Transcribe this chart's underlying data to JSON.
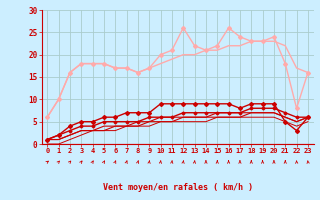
{
  "bg_color": "#cceeff",
  "grid_color": "#aacccc",
  "xlabel": "Vent moyen/en rafales ( km/h )",
  "xlabel_color": "#cc0000",
  "tick_color": "#cc0000",
  "ylim": [
    0,
    30
  ],
  "xlim": [
    -0.5,
    23.5
  ],
  "yticks": [
    0,
    5,
    10,
    15,
    20,
    25,
    30
  ],
  "xticks": [
    0,
    1,
    2,
    3,
    4,
    5,
    6,
    7,
    8,
    9,
    10,
    11,
    12,
    13,
    14,
    15,
    16,
    17,
    18,
    19,
    20,
    21,
    22,
    23
  ],
  "lines": [
    {
      "x": [
        0,
        1,
        2,
        3,
        4,
        5,
        6,
        7,
        8,
        9,
        10,
        11,
        12,
        13,
        14,
        15,
        16,
        17,
        18,
        19,
        20,
        21,
        22,
        23
      ],
      "y": [
        6,
        10,
        16,
        18,
        18,
        18,
        17,
        17,
        16,
        17,
        20,
        21,
        26,
        22,
        21,
        22,
        26,
        24,
        23,
        23,
        24,
        18,
        8,
        16
      ],
      "color": "#ffaaaa",
      "lw": 1.0,
      "marker": "D",
      "ms": 2.0,
      "zorder": 3
    },
    {
      "x": [
        0,
        1,
        2,
        3,
        4,
        5,
        6,
        7,
        8,
        9,
        10,
        11,
        12,
        13,
        14,
        15,
        16,
        17,
        18,
        19,
        20,
        21,
        22,
        23
      ],
      "y": [
        6,
        10,
        16,
        18,
        18,
        18,
        17,
        17,
        16,
        17,
        18,
        19,
        20,
        20,
        21,
        21,
        22,
        22,
        23,
        23,
        23,
        22,
        17,
        16
      ],
      "color": "#ffaaaa",
      "lw": 1.0,
      "marker": null,
      "ms": 0,
      "zorder": 2
    },
    {
      "x": [
        0,
        1,
        2,
        3,
        4,
        5,
        6,
        7,
        8,
        9,
        10,
        11,
        12,
        13,
        14,
        15,
        16,
        17,
        18,
        19,
        20,
        21,
        22,
        23
      ],
      "y": [
        1,
        2,
        4,
        5,
        5,
        6,
        6,
        7,
        7,
        7,
        9,
        9,
        9,
        9,
        9,
        9,
        9,
        8,
        9,
        9,
        9,
        5,
        3,
        6
      ],
      "color": "#cc0000",
      "lw": 1.0,
      "marker": "D",
      "ms": 2.0,
      "zorder": 4
    },
    {
      "x": [
        0,
        1,
        2,
        3,
        4,
        5,
        6,
        7,
        8,
        9,
        10,
        11,
        12,
        13,
        14,
        15,
        16,
        17,
        18,
        19,
        20,
        21,
        22,
        23
      ],
      "y": [
        1,
        2,
        3,
        4,
        4,
        5,
        5,
        5,
        5,
        6,
        6,
        6,
        7,
        7,
        7,
        7,
        7,
        7,
        8,
        8,
        8,
        7,
        6,
        6
      ],
      "color": "#cc0000",
      "lw": 1.0,
      "marker": "D",
      "ms": 1.5,
      "zorder": 4
    },
    {
      "x": [
        0,
        1,
        2,
        3,
        4,
        5,
        6,
        7,
        8,
        9,
        10,
        11,
        12,
        13,
        14,
        15,
        16,
        17,
        18,
        19,
        20,
        21,
        22,
        23
      ],
      "y": [
        1,
        1,
        2,
        3,
        3,
        4,
        4,
        4,
        5,
        5,
        6,
        6,
        6,
        6,
        6,
        7,
        7,
        7,
        7,
        7,
        7,
        6,
        5,
        6
      ],
      "color": "#cc0000",
      "lw": 0.8,
      "marker": null,
      "ms": 0,
      "zorder": 3
    },
    {
      "x": [
        0,
        1,
        2,
        3,
        4,
        5,
        6,
        7,
        8,
        9,
        10,
        11,
        12,
        13,
        14,
        15,
        16,
        17,
        18,
        19,
        20,
        21,
        22,
        23
      ],
      "y": [
        1,
        1,
        2,
        3,
        3,
        3,
        4,
        4,
        4,
        5,
        5,
        5,
        6,
        6,
        6,
        6,
        6,
        6,
        7,
        7,
        7,
        6,
        5,
        6
      ],
      "color": "#cc0000",
      "lw": 0.8,
      "marker": null,
      "ms": 0,
      "zorder": 3
    },
    {
      "x": [
        0,
        1,
        2,
        3,
        4,
        5,
        6,
        7,
        8,
        9,
        10,
        11,
        12,
        13,
        14,
        15,
        16,
        17,
        18,
        19,
        20,
        21,
        22,
        23
      ],
      "y": [
        0,
        0,
        1,
        2,
        3,
        3,
        3,
        4,
        4,
        4,
        5,
        5,
        5,
        5,
        5,
        6,
        6,
        6,
        6,
        6,
        6,
        5,
        4,
        5
      ],
      "color": "#cc0000",
      "lw": 0.7,
      "marker": null,
      "ms": 0,
      "zorder": 2
    }
  ],
  "arrow_angles": [
    220,
    210,
    210,
    205,
    200,
    200,
    195,
    192,
    190,
    185,
    185,
    185,
    185,
    185,
    180,
    180,
    180,
    180,
    180,
    180,
    180,
    180,
    178,
    175
  ]
}
